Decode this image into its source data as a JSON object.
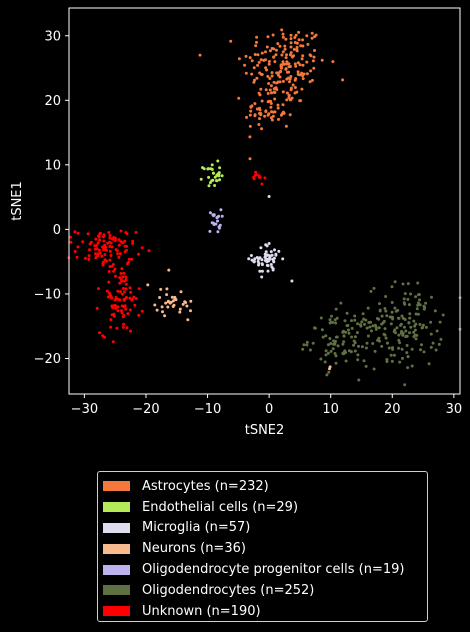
{
  "chart_data": {
    "type": "scatter",
    "xlabel": "tSNE2",
    "ylabel": "tSNE1",
    "xlim": [
      -32.5,
      31
    ],
    "ylim": [
      -25.5,
      34.3
    ],
    "xticks": [
      -30,
      -20,
      -10,
      0,
      10,
      20,
      30
    ],
    "yticks": [
      -20,
      -10,
      0,
      10,
      20,
      30
    ],
    "grid": false,
    "legend_position": "below",
    "background": "#000000",
    "series": [
      {
        "name": "Astrocytes (n=232)",
        "color": "#f4773b",
        "n": 232,
        "clusters": [
          {
            "cx": 2.5,
            "cy": 25.5,
            "sx": 3.4,
            "sy": 3.2,
            "n": 172
          },
          {
            "cx": 0.0,
            "cy": 18.5,
            "sx": 2.0,
            "sy": 1.8,
            "n": 60
          }
        ]
      },
      {
        "name": "Endothelial cells (n=29)",
        "color": "#b5ea58",
        "n": 29,
        "clusters": [
          {
            "cx": -9.3,
            "cy": 8.5,
            "sx": 0.7,
            "sy": 0.9,
            "n": 29
          }
        ]
      },
      {
        "name": "Microglia (n=57)",
        "color": "#e0dcf0",
        "n": 57,
        "clusters": [
          {
            "cx": -0.3,
            "cy": -4.6,
            "sx": 1.2,
            "sy": 1.2,
            "n": 55
          }
        ],
        "points": [
          [
            3.7,
            -8.0
          ],
          [
            0.0,
            5.1
          ]
        ]
      },
      {
        "name": "Neurons (n=36)",
        "color": "#f6ba8d",
        "n": 36,
        "clusters": [
          {
            "cx": -15.2,
            "cy": -11.2,
            "sx": 1.6,
            "sy": 1.1,
            "n": 31
          }
        ],
        "points": [
          [
            -19.7,
            -8.6
          ],
          [
            -16.3,
            -6.3
          ],
          [
            -13.2,
            -14.0
          ],
          [
            9.8,
            -21.6
          ],
          [
            9.9,
            -21.3
          ]
        ]
      },
      {
        "name": "Oligodendrocyte progenitor cells (n=19)",
        "color": "#bdb1ee",
        "n": 19,
        "clusters": [
          {
            "cx": -8.8,
            "cy": 1.3,
            "sx": 0.5,
            "sy": 0.9,
            "n": 19
          }
        ]
      },
      {
        "name": "Oligodendrocytes (n=252)",
        "color": "#5f7043",
        "n": 252,
        "clusters": [
          {
            "cx": 12.0,
            "cy": -17.0,
            "sx": 2.8,
            "sy": 2.2,
            "n": 102
          },
          {
            "cx": 22.0,
            "cy": -15.0,
            "sx": 3.0,
            "sy": 3.3,
            "n": 150
          }
        ]
      },
      {
        "name": "Unknown (n=190)",
        "color": "#ff0000",
        "n": 190,
        "clusters": [
          {
            "cx": -26.5,
            "cy": -3.0,
            "sx": 2.4,
            "sy": 1.6,
            "n": 95
          },
          {
            "cx": -24.2,
            "cy": -11.0,
            "sx": 1.6,
            "sy": 2.6,
            "n": 85
          },
          {
            "cx": -1.8,
            "cy": 8.0,
            "sx": 0.5,
            "sy": 0.6,
            "n": 10
          }
        ]
      }
    ]
  }
}
